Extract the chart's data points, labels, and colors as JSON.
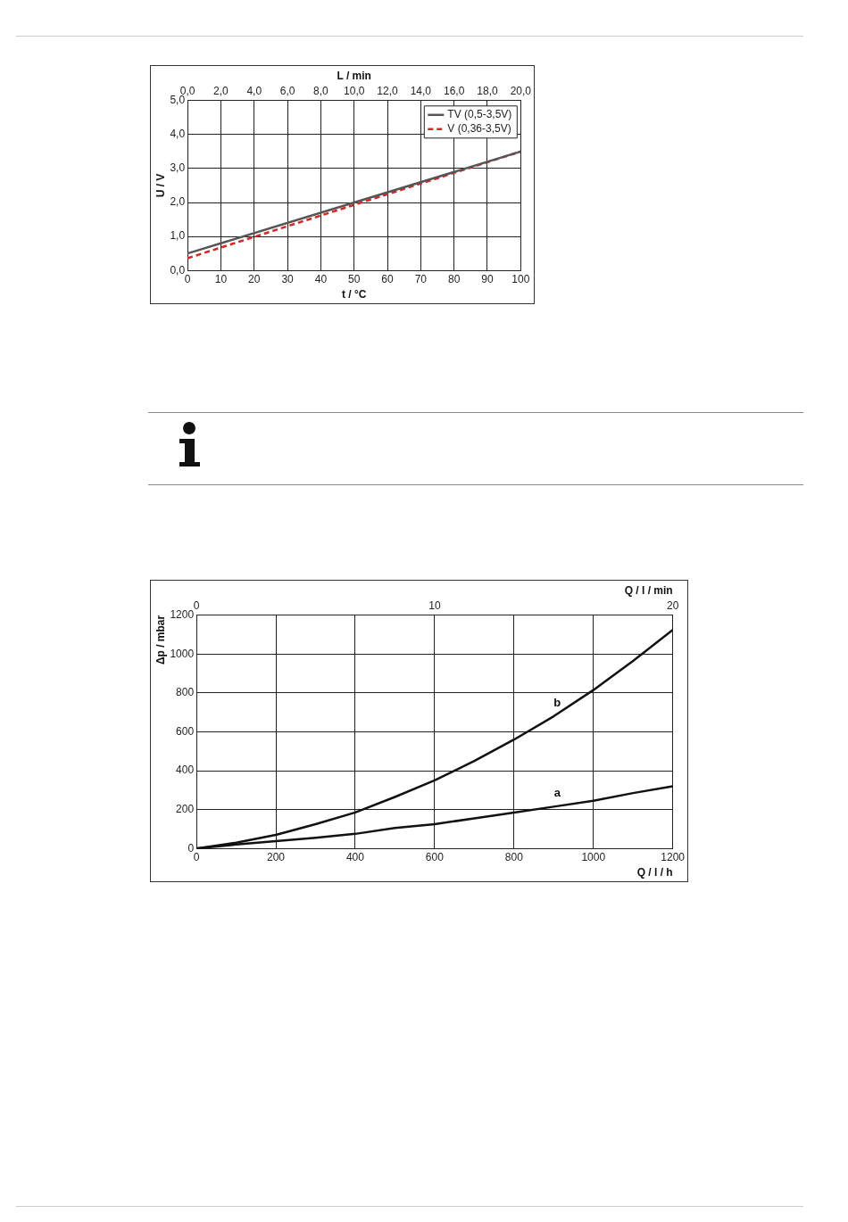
{
  "chart_data": [
    {
      "type": "line",
      "xlabel": "t / °C",
      "ylabel": "U / V",
      "x2label": "L / min",
      "x": [
        0,
        100
      ],
      "series": [
        {
          "name": "TV (0,5-3,5V)",
          "color": "#555555",
          "line_style": "solid",
          "values": [
            0.5,
            3.5
          ]
        },
        {
          "name": "V (0,36-3,5V)",
          "color": "#dd2222",
          "line_style": "dashed",
          "values": [
            0.36,
            3.5
          ]
        }
      ],
      "xlim": [
        0,
        100
      ],
      "xticks": [
        0,
        10,
        20,
        30,
        40,
        50,
        60,
        70,
        80,
        90,
        100
      ],
      "x2lim": [
        0,
        20
      ],
      "x2ticks": [
        {
          "value": 0,
          "label": "0,0"
        },
        {
          "value": 2,
          "label": "2,0"
        },
        {
          "value": 4,
          "label": "4,0"
        },
        {
          "value": 6,
          "label": "6,0"
        },
        {
          "value": 8,
          "label": "8,0"
        },
        {
          "value": 10,
          "label": "10,0"
        },
        {
          "value": 12,
          "label": "12,0"
        },
        {
          "value": 14,
          "label": "14,0"
        },
        {
          "value": 16,
          "label": "16,0"
        },
        {
          "value": 18,
          "label": "18,0"
        },
        {
          "value": 20,
          "label": "20,0"
        }
      ],
      "ylim": [
        0,
        5
      ],
      "yticks": [
        {
          "value": 0,
          "label": "0,0"
        },
        {
          "value": 1,
          "label": "1,0"
        },
        {
          "value": 2,
          "label": "2,0"
        },
        {
          "value": 3,
          "label": "3,0"
        },
        {
          "value": 4,
          "label": "4,0"
        },
        {
          "value": 5,
          "label": "5,0"
        }
      ],
      "grid": true,
      "legend": "top right",
      "marker": "none"
    },
    {
      "type": "line",
      "xlabel": "Q / l / h",
      "ylabel": "Δp / mbar",
      "x2label": "Q / l / min",
      "x": [
        0,
        100,
        200,
        300,
        400,
        500,
        600,
        700,
        800,
        900,
        1000,
        1100,
        1200
      ],
      "series": [
        {
          "name": "a",
          "color": "#111111",
          "values": [
            0,
            20,
            38,
            55,
            75,
            105,
            125,
            155,
            185,
            215,
            245,
            285,
            320
          ]
        },
        {
          "name": "b",
          "color": "#111111",
          "values": [
            0,
            30,
            70,
            125,
            185,
            265,
            350,
            450,
            560,
            680,
            815,
            965,
            1125
          ]
        }
      ],
      "xlim": [
        0,
        1200
      ],
      "xticks": [
        0,
        200,
        400,
        600,
        800,
        1000,
        1200
      ],
      "x2lim": [
        0,
        20
      ],
      "x2ticks": [
        0,
        10,
        20
      ],
      "ylim": [
        0,
        1200
      ],
      "yticks": [
        0,
        200,
        400,
        600,
        800,
        1000,
        1200
      ],
      "grid": true,
      "legend": false,
      "marker": "none",
      "line_style": "solid"
    }
  ]
}
